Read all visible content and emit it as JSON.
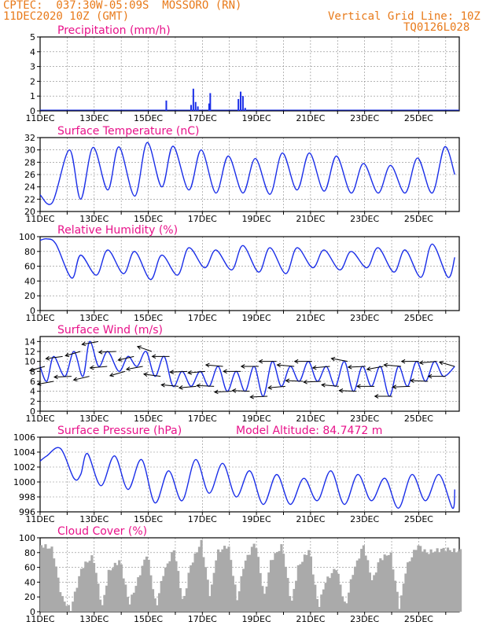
{
  "header": {
    "line1": "CPTEC:  037:30W-05:09S  MOSSORO (RN)",
    "line2": "11DEC2020 10Z (GMT)",
    "right1": "Vertical Grid Line: 10Z",
    "right2": "TQ0126L028",
    "color": "#e87a1a"
  },
  "colors": {
    "title": "#e8128a",
    "line": "#1a2ee8",
    "grid": "#888888",
    "cloud": "#aaaaaa",
    "arrow": "#000000"
  },
  "date_labels": [
    "11DEC",
    "13DEC",
    "15DEC",
    "17DEC",
    "19DEC",
    "21DEC",
    "23DEC",
    "25DEC"
  ],
  "chart_data": [
    {
      "type": "bar",
      "title": "Precipitation (mm/h)",
      "ylim": [
        0,
        5
      ],
      "yticks": [
        0,
        1,
        2,
        3,
        4,
        5
      ],
      "x_start": "11DEC2020 10Z",
      "x_step_hours": 6,
      "bars": [
        {
          "x": "16DEC2020 02Z",
          "value": 0.7
        },
        {
          "x": "17DEC2020 00Z",
          "value": 0.4
        },
        {
          "x": "17DEC2020 02Z",
          "value": 1.5
        },
        {
          "x": "17DEC2020 04Z",
          "value": 0.6
        },
        {
          "x": "17DEC2020 06Z",
          "value": 0.3
        },
        {
          "x": "17DEC2020 16Z",
          "value": 0.5
        },
        {
          "x": "17DEC2020 17Z",
          "value": 1.2
        },
        {
          "x": "18DEC2020 18Z",
          "value": 0.8
        },
        {
          "x": "18DEC2020 20Z",
          "value": 1.3
        },
        {
          "x": "18DEC2020 22Z",
          "value": 1.0
        },
        {
          "x": "19DEC2020 00Z",
          "value": 0.2
        }
      ]
    },
    {
      "type": "line",
      "title": "Surface Temperature (nC)",
      "ylim": [
        20,
        32
      ],
      "yticks": [
        20,
        22,
        24,
        26,
        28,
        30,
        32
      ],
      "peaks": [
        {
          "x": "11DEC2020 10Z",
          "value": 22.7
        },
        {
          "x": "11DEC2020 21Z",
          "value": 21.5
        },
        {
          "x": "12DEC2020 12Z",
          "value": 30.0
        },
        {
          "x": "12DEC2020 22Z",
          "value": 22.0
        },
        {
          "x": "13DEC2020 09Z",
          "value": 30.4
        },
        {
          "x": "13DEC2020 22Z",
          "value": 23.5
        },
        {
          "x": "14DEC2020 08Z",
          "value": 30.5
        },
        {
          "x": "14DEC2020 22Z",
          "value": 22.5
        },
        {
          "x": "15DEC2020 09Z",
          "value": 31.2
        },
        {
          "x": "15DEC2020 22Z",
          "value": 24.0
        },
        {
          "x": "16DEC2020 08Z",
          "value": 30.6
        },
        {
          "x": "16DEC2020 22Z",
          "value": 23.5
        },
        {
          "x": "17DEC2020 09Z",
          "value": 30.0
        },
        {
          "x": "17DEC2020 22Z",
          "value": 23.0
        },
        {
          "x": "18DEC2020 09Z",
          "value": 29.0
        },
        {
          "x": "18DEC2020 22Z",
          "value": 23.0
        },
        {
          "x": "19DEC2020 09Z",
          "value": 28.6
        },
        {
          "x": "19DEC2020 22Z",
          "value": 22.8
        },
        {
          "x": "20DEC2020 09Z",
          "value": 29.5
        },
        {
          "x": "20DEC2020 22Z",
          "value": 23.5
        },
        {
          "x": "21DEC2020 09Z",
          "value": 29.5
        },
        {
          "x": "21DEC2020 22Z",
          "value": 23.3
        },
        {
          "x": "22DEC2020 09Z",
          "value": 29.0
        },
        {
          "x": "22DEC2020 22Z",
          "value": 23.0
        },
        {
          "x": "23DEC2020 09Z",
          "value": 27.8
        },
        {
          "x": "23DEC2020 22Z",
          "value": 23.0
        },
        {
          "x": "24DEC2020 09Z",
          "value": 27.5
        },
        {
          "x": "24DEC2020 22Z",
          "value": 23.0
        },
        {
          "x": "25DEC2020 09Z",
          "value": 28.7
        },
        {
          "x": "25DEC2020 22Z",
          "value": 23.0
        },
        {
          "x": "26DEC2020 09Z",
          "value": 30.5
        },
        {
          "x": "26DEC2020 18Z",
          "value": 26.0
        }
      ]
    },
    {
      "type": "line",
      "title": "Relative Humidity (%)",
      "ylim": [
        0,
        100
      ],
      "yticks": [
        0,
        20,
        40,
        60,
        80,
        100
      ],
      "peaks": [
        {
          "x": "11DEC2020 10Z",
          "value": 95
        },
        {
          "x": "11DEC2020 16Z",
          "value": 97
        },
        {
          "x": "12DEC2020 00Z",
          "value": 90
        },
        {
          "x": "12DEC2020 14Z",
          "value": 44
        },
        {
          "x": "12DEC2020 22Z",
          "value": 75
        },
        {
          "x": "13DEC2020 12Z",
          "value": 48
        },
        {
          "x": "13DEC2020 22Z",
          "value": 82
        },
        {
          "x": "14DEC2020 12Z",
          "value": 50
        },
        {
          "x": "14DEC2020 22Z",
          "value": 80
        },
        {
          "x": "15DEC2020 12Z",
          "value": 42
        },
        {
          "x": "15DEC2020 22Z",
          "value": 75
        },
        {
          "x": "16DEC2020 12Z",
          "value": 48
        },
        {
          "x": "16DEC2020 22Z",
          "value": 85
        },
        {
          "x": "17DEC2020 12Z",
          "value": 58
        },
        {
          "x": "17DEC2020 22Z",
          "value": 82
        },
        {
          "x": "18DEC2020 12Z",
          "value": 55
        },
        {
          "x": "18DEC2020 22Z",
          "value": 88
        },
        {
          "x": "19DEC2020 12Z",
          "value": 52
        },
        {
          "x": "19DEC2020 22Z",
          "value": 85
        },
        {
          "x": "20DEC2020 12Z",
          "value": 50
        },
        {
          "x": "20DEC2020 22Z",
          "value": 85
        },
        {
          "x": "21DEC2020 12Z",
          "value": 58
        },
        {
          "x": "21DEC2020 22Z",
          "value": 82
        },
        {
          "x": "22DEC2020 12Z",
          "value": 55
        },
        {
          "x": "22DEC2020 22Z",
          "value": 80
        },
        {
          "x": "23DEC2020 12Z",
          "value": 58
        },
        {
          "x": "23DEC2020 22Z",
          "value": 85
        },
        {
          "x": "24DEC2020 12Z",
          "value": 52
        },
        {
          "x": "24DEC2020 22Z",
          "value": 82
        },
        {
          "x": "25DEC2020 12Z",
          "value": 45
        },
        {
          "x": "25DEC2020 22Z",
          "value": 90
        },
        {
          "x": "26DEC2020 12Z",
          "value": 45
        },
        {
          "x": "26DEC2020 18Z",
          "value": 72
        }
      ]
    },
    {
      "type": "line",
      "title": "Surface Wind (m/s)",
      "ylim": [
        0,
        15
      ],
      "yticks": [
        0,
        2,
        4,
        6,
        8,
        10,
        12,
        14
      ],
      "peaks": [
        {
          "x": "11DEC2020 10Z",
          "value": 9
        },
        {
          "x": "11DEC2020 16Z",
          "value": 6
        },
        {
          "x": "11DEC2020 22Z",
          "value": 11
        },
        {
          "x": "12DEC2020 08Z",
          "value": 7
        },
        {
          "x": "12DEC2020 16Z",
          "value": 12
        },
        {
          "x": "13DEC2020 00Z",
          "value": 7
        },
        {
          "x": "13DEC2020 06Z",
          "value": 14
        },
        {
          "x": "13DEC2020 14Z",
          "value": 9
        },
        {
          "x": "13DEC2020 22Z",
          "value": 12
        },
        {
          "x": "14DEC2020 08Z",
          "value": 8
        },
        {
          "x": "14DEC2020 16Z",
          "value": 11
        },
        {
          "x": "15DEC2020 00Z",
          "value": 9
        },
        {
          "x": "15DEC2020 08Z",
          "value": 12
        },
        {
          "x": "15DEC2020 16Z",
          "value": 7
        },
        {
          "x": "16DEC2020 00Z",
          "value": 11
        },
        {
          "x": "16DEC2020 08Z",
          "value": 5
        },
        {
          "x": "16DEC2020 16Z",
          "value": 8
        },
        {
          "x": "17DEC2020 00Z",
          "value": 5
        },
        {
          "x": "17DEC2020 08Z",
          "value": 8
        },
        {
          "x": "17DEC2020 16Z",
          "value": 5
        },
        {
          "x": "18DEC2020 00Z",
          "value": 9
        },
        {
          "x": "18DEC2020 08Z",
          "value": 4
        },
        {
          "x": "18DEC2020 16Z",
          "value": 8
        },
        {
          "x": "19DEC2020 00Z",
          "value": 4
        },
        {
          "x": "19DEC2020 08Z",
          "value": 9
        },
        {
          "x": "19DEC2020 16Z",
          "value": 3
        },
        {
          "x": "20DEC2020 00Z",
          "value": 10
        },
        {
          "x": "20DEC2020 08Z",
          "value": 5
        },
        {
          "x": "20DEC2020 16Z",
          "value": 9
        },
        {
          "x": "21DEC2020 00Z",
          "value": 6
        },
        {
          "x": "21DEC2020 08Z",
          "value": 10
        },
        {
          "x": "21DEC2020 16Z",
          "value": 6
        },
        {
          "x": "22DEC2020 00Z",
          "value": 9
        },
        {
          "x": "22DEC2020 08Z",
          "value": 5
        },
        {
          "x": "22DEC2020 16Z",
          "value": 10
        },
        {
          "x": "23DEC2020 00Z",
          "value": 4
        },
        {
          "x": "23DEC2020 08Z",
          "value": 9
        },
        {
          "x": "23DEC2020 16Z",
          "value": 5
        },
        {
          "x": "24DEC2020 00Z",
          "value": 9
        },
        {
          "x": "24DEC2020 08Z",
          "value": 3
        },
        {
          "x": "24DEC2020 16Z",
          "value": 9
        },
        {
          "x": "25DEC2020 00Z",
          "value": 5
        },
        {
          "x": "25DEC2020 08Z",
          "value": 10
        },
        {
          "x": "25DEC2020 16Z",
          "value": 6
        },
        {
          "x": "26DEC2020 00Z",
          "value": 10
        },
        {
          "x": "26DEC2020 08Z",
          "value": 7
        },
        {
          "x": "26DEC2020 18Z",
          "value": 9
        }
      ],
      "arrows_direction_deg": [
        120,
        110,
        105,
        95,
        120,
        115,
        110,
        100,
        95,
        120,
        115,
        110,
        55,
        75,
        90,
        80,
        95,
        100,
        100,
        85,
        80,
        95,
        90,
        85,
        90,
        95,
        90,
        100,
        80,
        85,
        90,
        95,
        100,
        80,
        70,
        85,
        95,
        90,
        110,
        90,
        80,
        95,
        90,
        85,
        100,
        90,
        60
      ]
    },
    {
      "type": "line",
      "title": "Surface Pressure (hPa)",
      "annotation": "Model Altitude: 84.7472 m",
      "ylim": [
        996,
        1006
      ],
      "yticks": [
        996,
        998,
        1000,
        1002,
        1004,
        1006
      ],
      "peaks": [
        {
          "x": "11DEC2020 10Z",
          "value": 1002.8
        },
        {
          "x": "11DEC2020 16Z",
          "value": 1003.5
        },
        {
          "x": "12DEC2020 04Z",
          "value": 1004.5
        },
        {
          "x": "12DEC2020 16Z",
          "value": 1000.5
        },
        {
          "x": "12DEC2020 22Z",
          "value": 1001.0
        },
        {
          "x": "13DEC2020 04Z",
          "value": 1003.8
        },
        {
          "x": "13DEC2020 16Z",
          "value": 999.5
        },
        {
          "x": "14DEC2020 04Z",
          "value": 1003.5
        },
        {
          "x": "14DEC2020 16Z",
          "value": 999.0
        },
        {
          "x": "15DEC2020 04Z",
          "value": 1003.0
        },
        {
          "x": "15DEC2020 16Z",
          "value": 997.2
        },
        {
          "x": "16DEC2020 04Z",
          "value": 1001.5
        },
        {
          "x": "16DEC2020 16Z",
          "value": 997.5
        },
        {
          "x": "17DEC2020 04Z",
          "value": 1003.0
        },
        {
          "x": "17DEC2020 16Z",
          "value": 998.5
        },
        {
          "x": "18DEC2020 04Z",
          "value": 1002.5
        },
        {
          "x": "18DEC2020 16Z",
          "value": 998.0
        },
        {
          "x": "19DEC2020 04Z",
          "value": 1001.5
        },
        {
          "x": "19DEC2020 16Z",
          "value": 997.0
        },
        {
          "x": "20DEC2020 04Z",
          "value": 1001.0
        },
        {
          "x": "20DEC2020 16Z",
          "value": 997.0
        },
        {
          "x": "21DEC2020 04Z",
          "value": 1000.5
        },
        {
          "x": "21DEC2020 16Z",
          "value": 997.5
        },
        {
          "x": "22DEC2020 04Z",
          "value": 1001.5
        },
        {
          "x": "22DEC2020 16Z",
          "value": 997.0
        },
        {
          "x": "23DEC2020 04Z",
          "value": 1001.0
        },
        {
          "x": "23DEC2020 16Z",
          "value": 997.5
        },
        {
          "x": "24DEC2020 04Z",
          "value": 1000.5
        },
        {
          "x": "24DEC2020 16Z",
          "value": 996.5
        },
        {
          "x": "25DEC2020 04Z",
          "value": 1001.0
        },
        {
          "x": "25DEC2020 16Z",
          "value": 997.5
        },
        {
          "x": "26DEC2020 04Z",
          "value": 1001.0
        },
        {
          "x": "26DEC2020 16Z",
          "value": 996.5
        },
        {
          "x": "26DEC2020 18Z",
          "value": 999.0
        }
      ]
    },
    {
      "type": "area",
      "title": "Cloud Cover (%)",
      "ylim": [
        0,
        100
      ],
      "yticks": [
        0,
        20,
        40,
        60,
        80,
        100
      ],
      "peaks": [
        {
          "x": "11DEC2020 10Z",
          "value": 90
        },
        {
          "x": "11DEC2020 20Z",
          "value": 85
        },
        {
          "x": "12DEC2020 04Z",
          "value": 20
        },
        {
          "x": "12DEC2020 12Z",
          "value": 2
        },
        {
          "x": "12DEC2020 22Z",
          "value": 60
        },
        {
          "x": "13DEC2020 08Z",
          "value": 75
        },
        {
          "x": "13DEC2020 16Z",
          "value": 5
        },
        {
          "x": "13DEC2020 22Z",
          "value": 55
        },
        {
          "x": "14DEC2020 08Z",
          "value": 70
        },
        {
          "x": "14DEC2020 16Z",
          "value": 10
        },
        {
          "x": "14DEC2020 22Z",
          "value": 35
        },
        {
          "x": "15DEC2020 08Z",
          "value": 80
        },
        {
          "x": "15DEC2020 16Z",
          "value": 5
        },
        {
          "x": "15DEC2020 22Z",
          "value": 50
        },
        {
          "x": "16DEC2020 08Z",
          "value": 85
        },
        {
          "x": "16DEC2020 16Z",
          "value": 10
        },
        {
          "x": "16DEC2020 22Z",
          "value": 60
        },
        {
          "x": "17DEC2020 08Z",
          "value": 95
        },
        {
          "x": "17DEC2020 16Z",
          "value": 20
        },
        {
          "x": "17DEC2020 22Z",
          "value": 80
        },
        {
          "x": "18DEC2020 08Z",
          "value": 90
        },
        {
          "x": "18DEC2020 16Z",
          "value": 15
        },
        {
          "x": "18DEC2020 22Z",
          "value": 65
        },
        {
          "x": "19DEC2020 08Z",
          "value": 95
        },
        {
          "x": "19DEC2020 16Z",
          "value": 20
        },
        {
          "x": "19DEC2020 22Z",
          "value": 70
        },
        {
          "x": "20DEC2020 08Z",
          "value": 90
        },
        {
          "x": "20DEC2020 16Z",
          "value": 10
        },
        {
          "x": "20DEC2020 22Z",
          "value": 60
        },
        {
          "x": "21DEC2020 08Z",
          "value": 85
        },
        {
          "x": "21DEC2020 16Z",
          "value": 5
        },
        {
          "x": "21DEC2020 22Z",
          "value": 40
        },
        {
          "x": "22DEC2020 08Z",
          "value": 60
        },
        {
          "x": "22DEC2020 16Z",
          "value": 5
        },
        {
          "x": "22DEC2020 22Z",
          "value": 50
        },
        {
          "x": "23DEC2020 08Z",
          "value": 90
        },
        {
          "x": "23DEC2020 16Z",
          "value": 40
        },
        {
          "x": "23DEC2020 22Z",
          "value": 70
        },
        {
          "x": "24DEC2020 08Z",
          "value": 80
        },
        {
          "x": "24DEC2020 16Z",
          "value": 5
        },
        {
          "x": "24DEC2020 22Z",
          "value": 60
        },
        {
          "x": "25DEC2020 08Z",
          "value": 90
        },
        {
          "x": "25DEC2020 16Z",
          "value": 80
        },
        {
          "x": "26DEC2020 08Z",
          "value": 85
        },
        {
          "x": "26DEC2020 18Z",
          "value": 82
        }
      ]
    }
  ]
}
